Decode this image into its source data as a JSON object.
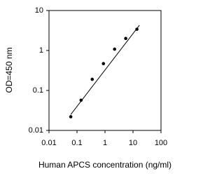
{
  "chart_data": {
    "type": "scatter",
    "x_label": "Human APCS concentration (ng/ml)",
    "y_label": "OD=450 nm",
    "x": [
      0.06,
      0.14,
      0.35,
      0.88,
      2.2,
      5.5,
      13.8
    ],
    "values": [
      0.022,
      0.057,
      0.19,
      0.47,
      1.08,
      2.0,
      3.4
    ],
    "color": "#000000",
    "fit_line": {
      "x": [
        0.06,
        17
      ],
      "y": [
        0.025,
        4.3
      ],
      "color": "#000000"
    },
    "log_x": true,
    "log_y": true,
    "xlim": [
      0.01,
      100
    ],
    "ylim": [
      0.01,
      10
    ],
    "xticks": [
      0.01,
      0.1,
      1,
      10,
      100
    ],
    "yticks": [
      0.01,
      0.1,
      1,
      10
    ]
  }
}
